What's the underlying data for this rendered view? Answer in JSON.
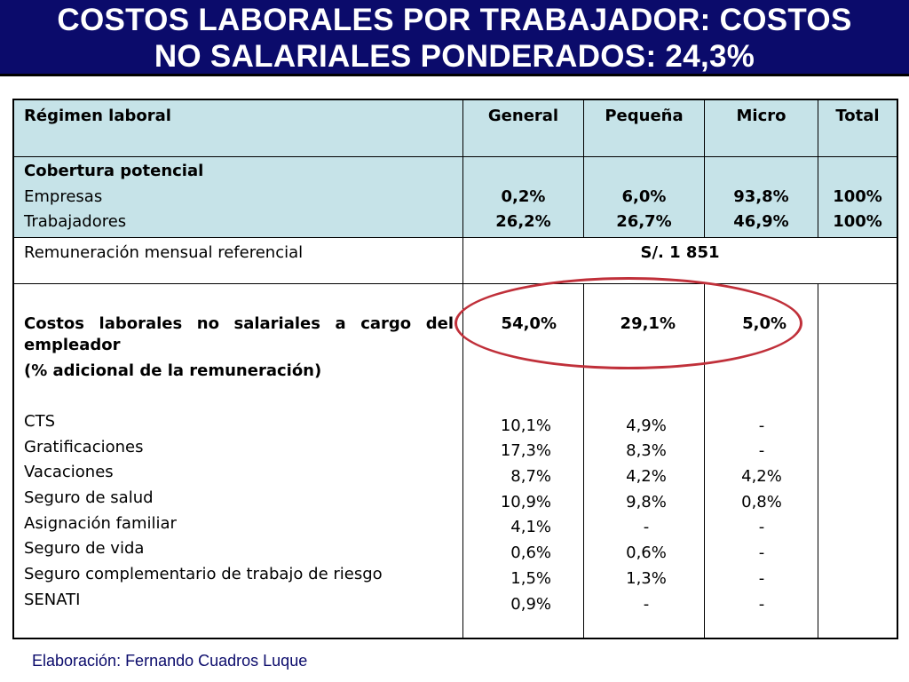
{
  "title": {
    "line1": "COSTOS LABORALES POR TRABAJADOR: COSTOS",
    "line2": "NO SALARIALES PONDERADOS: 24,3%"
  },
  "table": {
    "headers": [
      "Régimen laboral",
      "General",
      "Pequeña",
      "Micro",
      "Total"
    ],
    "coverage": {
      "label": "Cobertura potencial",
      "rows": [
        {
          "label": "Empresas",
          "general": "0,2%",
          "pequena": "6,0%",
          "micro": "93,8%",
          "total": "100%"
        },
        {
          "label": "Trabajadores",
          "general": "26,2%",
          "pequena": "26,7%",
          "micro": "46,9%",
          "total": "100%"
        }
      ]
    },
    "remuneration": {
      "label": "Remuneración mensual referencial",
      "value": "S/. 1 851"
    },
    "costs": {
      "label_line1": "Costos laborales no salariales a cargo del",
      "label_line2": "empleador",
      "label_line3": "(% adicional de la remuneración)",
      "general": "54,0%",
      "pequena": "29,1%",
      "micro": "5,0%"
    },
    "items": [
      {
        "label": "CTS",
        "general": "10,1%",
        "pequena": "4,9%",
        "micro": "-"
      },
      {
        "label": "Gratificaciones",
        "general": "17,3%",
        "pequena": "8,3%",
        "micro": "-"
      },
      {
        "label": "Vacaciones",
        "general": "8,7%",
        "pequena": "4,2%",
        "micro": "4,2%"
      },
      {
        "label": "Seguro de salud",
        "general": "10,9%",
        "pequena": "9,8%",
        "micro": "0,8%"
      },
      {
        "label": "Asignación familiar",
        "general": "4,1%",
        "pequena": "-",
        "micro": "-"
      },
      {
        "label": "Seguro de vida",
        "general": "0,6%",
        "pequena": "0,6%",
        "micro": "-"
      },
      {
        "label": "Seguro complementario de trabajo de riesgo",
        "general": "1,5%",
        "pequena": "1,3%",
        "micro": "-"
      },
      {
        "label": "SENATI",
        "general": "0,9%",
        "pequena": "-",
        "micro": "-"
      }
    ]
  },
  "footer": "Elaboración: Fernando Cuadros Luque",
  "colors": {
    "title_bg": "#0b0b6b",
    "header_bg": "#c6e3e8",
    "highlight": "#c0303a"
  }
}
